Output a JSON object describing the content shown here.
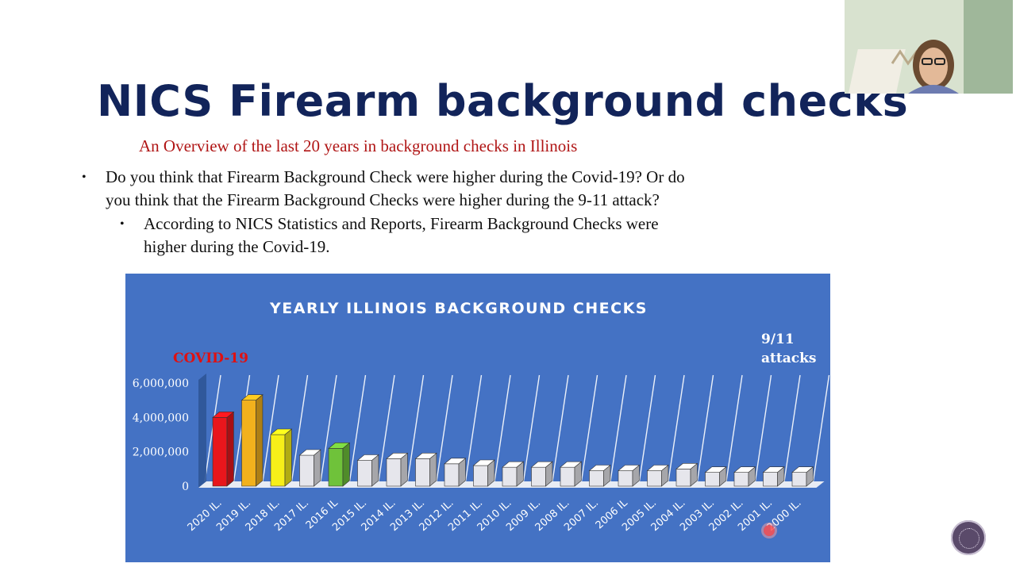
{
  "slide": {
    "title": "NICS Firearm background checks",
    "subtitle": "An Overview of the last 20 years in background checks in Illinois",
    "bullet1_line1": "Do you think that Firearm Background Check were higher during the Covid-19? Or do",
    "bullet1_line2": "you think that the Firearm Background Checks were higher during the 9-11 attack?",
    "bullet2_line1": "According to NICS Statistics and Reports, Firearm Background Checks were",
    "bullet2_line2": "higher during the Covid-19.",
    "bullet_char": "•"
  },
  "chart_data": {
    "type": "bar",
    "title": "YEARLY ILLINOIS BACKGROUND CHECKS",
    "annotations": [
      "COVID-19",
      "9/11",
      "attacks"
    ],
    "categories": [
      "2020 IL.",
      "2019 IL.",
      "2018 IL.",
      "2017 IL.",
      "2016 IL",
      "2015 IL.",
      "2014 IL.",
      "2013 IL.",
      "2012 IL.",
      "2011 IL.",
      "2010 IL.",
      "2009 IL.",
      "2008 IL.",
      "2007 IL.",
      "2006 IL",
      "2005 IL.",
      "2004 IL.",
      "2003 IL.",
      "2002 IL.",
      "2001 IL.",
      "2000 IL."
    ],
    "values": [
      4000000,
      5000000,
      3000000,
      1800000,
      2200000,
      1500000,
      1600000,
      1600000,
      1300000,
      1200000,
      1100000,
      1100000,
      1100000,
      900000,
      900000,
      900000,
      1000000,
      800000,
      800000,
      800000,
      800000
    ],
    "bar_colors": [
      "#e8161c",
      "#f2b11d",
      "#f7ef19",
      "#e6e6ec",
      "#6fc23a",
      "#e6e6ec",
      "#e6e6ec",
      "#e6e6ec",
      "#e6e6ec",
      "#e6e6ec",
      "#e6e6ec",
      "#e6e6ec",
      "#e6e6ec",
      "#e6e6ec",
      "#e6e6ec",
      "#e6e6ec",
      "#e6e6ec",
      "#e6e6ec",
      "#e6e6ec",
      "#e6e6ec",
      "#e6e6ec"
    ],
    "yticks": [
      "0",
      "2,000,000",
      "4,000,000",
      "6,000,000"
    ],
    "ylim": [
      0,
      6000000
    ],
    "grid": true,
    "background": "#4472c4"
  }
}
